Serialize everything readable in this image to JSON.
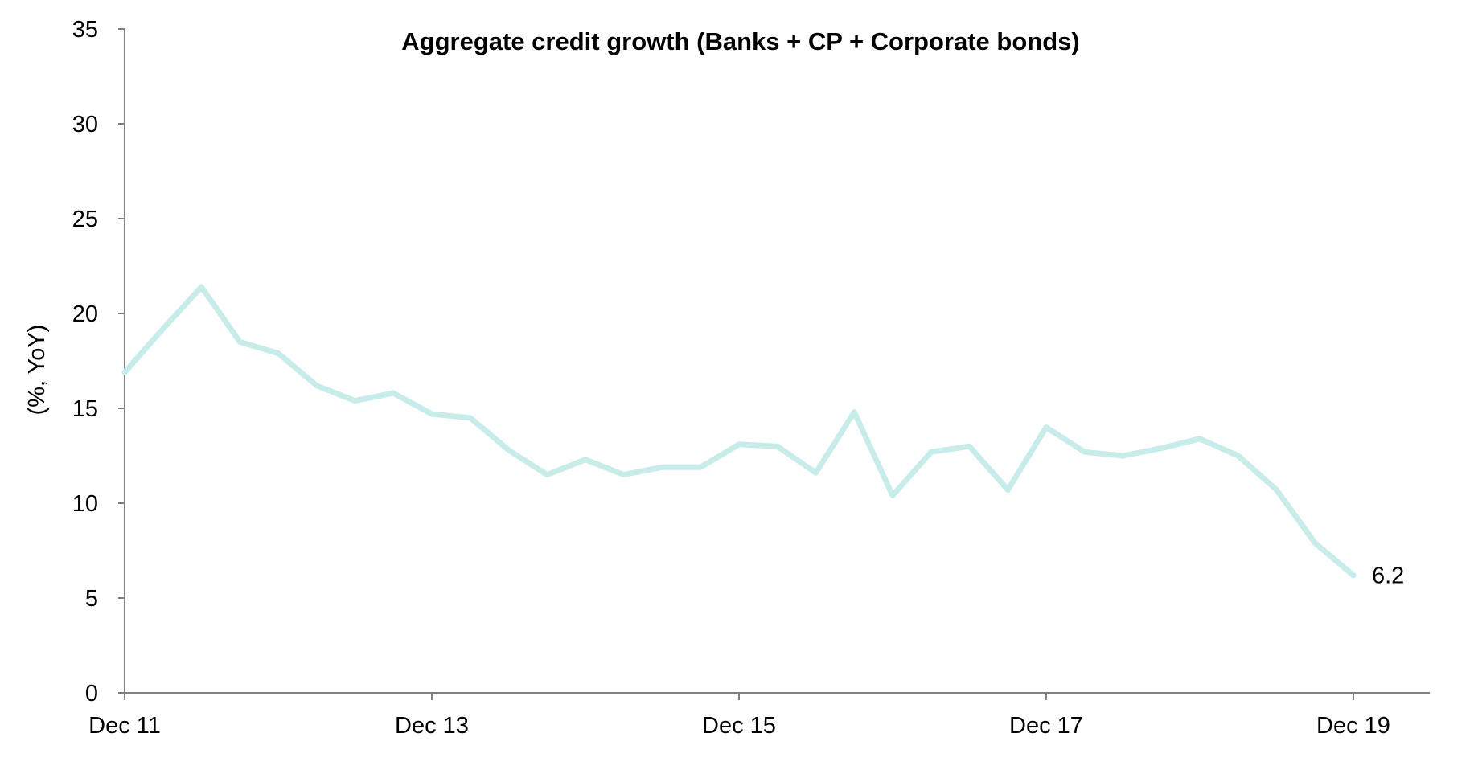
{
  "chart_data": {
    "type": "line",
    "title": "Aggregate credit growth (Banks + CP + Corporate bonds)",
    "xlabel": "",
    "ylabel": "(%, YoY)",
    "ylim": [
      0,
      35
    ],
    "yticks": [
      "0",
      "5",
      "10",
      "15",
      "20",
      "25",
      "30",
      "35"
    ],
    "xticks": [
      "Dec 11",
      "Dec 13",
      "Dec 15",
      "Dec 17",
      "Dec 19"
    ],
    "grid": false,
    "legend": "none",
    "x": [
      "Dec 11",
      "Mar 12",
      "Jun 12",
      "Sep 12",
      "Dec 12",
      "Mar 13",
      "Jun 13",
      "Sep 13",
      "Dec 13",
      "Mar 14",
      "Jun 14",
      "Sep 14",
      "Dec 14",
      "Mar 15",
      "Jun 15",
      "Sep 15",
      "Dec 15",
      "Mar 16",
      "Jun 16",
      "Sep 16",
      "Dec 16",
      "Mar 17",
      "Jun 17",
      "Sep 17",
      "Dec 17",
      "Mar 18",
      "Jun 18",
      "Sep 18",
      "Dec 18",
      "Mar 19",
      "Jun 19",
      "Sep 19",
      "Dec 19"
    ],
    "series": [
      {
        "values": [
          16.9,
          19.2,
          21.4,
          18.5,
          17.9,
          16.2,
          15.4,
          15.8,
          14.7,
          14.5,
          12.8,
          11.5,
          12.3,
          11.5,
          11.9,
          11.9,
          13.1,
          13.0,
          11.6,
          14.8,
          10.4,
          12.7,
          13.0,
          10.7,
          14.0,
          12.7,
          12.5,
          12.9,
          13.4,
          12.5,
          10.7,
          7.9,
          6.2
        ],
        "color": "#c8ecea"
      }
    ],
    "annotation": {
      "text": "6.2"
    }
  }
}
